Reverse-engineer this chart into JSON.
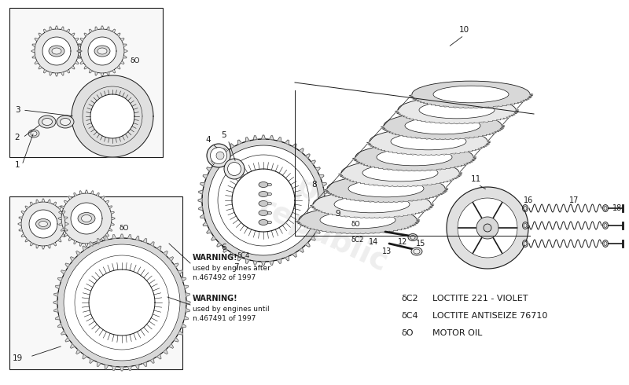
{
  "bg_color": "#ffffff",
  "line_color": "#1a1a1a",
  "fill_light": "#f0f0f0",
  "fill_mid": "#d8d8d8",
  "fill_dark": "#b0b0b0",
  "watermark_color": "#c8c8c8",
  "warning1_title": "WARNING!",
  "warning1_line1": "used by engines after",
  "warning1_line2": "n.467492 of 1997",
  "warning2_title": "WARNING!",
  "warning2_line1": "used by engines until",
  "warning2_line2": "n.467491 of 1997",
  "legend_lines": [
    [
      "δC2",
      "LOCTITE 221 - VIOLET"
    ],
    [
      "δC4",
      "LOCTITE ANTISEIZE 76710"
    ],
    [
      "δO",
      "MOTOR OIL"
    ]
  ]
}
